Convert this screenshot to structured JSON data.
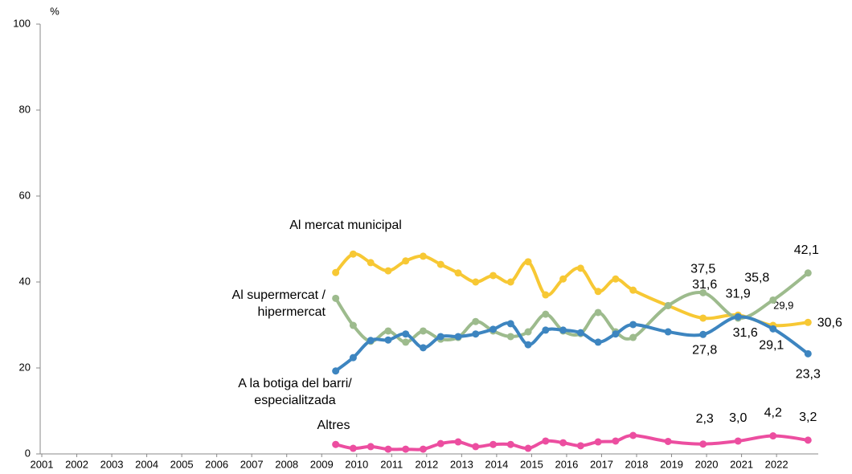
{
  "chart_data": {
    "type": "line",
    "y_unit_label": "%",
    "xlim": [
      2001,
      2023.1
    ],
    "xticks": [
      2001,
      2002,
      2003,
      2004,
      2005,
      2006,
      2007,
      2008,
      2009,
      2010,
      2011,
      2012,
      2013,
      2014,
      2015,
      2016,
      2017,
      2018,
      2019,
      2020,
      2021,
      2022
    ],
    "ylim": [
      0,
      100
    ],
    "yticks": [
      0,
      20,
      40,
      60,
      80,
      100
    ],
    "grid": false,
    "x": [
      2009.4,
      2009.9,
      2010.4,
      2010.9,
      2011.4,
      2011.9,
      2012.4,
      2012.9,
      2013.4,
      2013.9,
      2014.4,
      2014.9,
      2015.4,
      2015.9,
      2016.4,
      2016.9,
      2017.4,
      2017.9,
      2018.9,
      2019.9,
      2020.9,
      2021.9,
      2022.9
    ],
    "series": [
      {
        "name": [
          "Al mercat municipal"
        ],
        "color": "#f7c834",
        "values": [
          42.2,
          46.5,
          44.5,
          42.6,
          44.9,
          46.0,
          44.1,
          42.1,
          40.0,
          41.5,
          40.0,
          44.7,
          37.0,
          40.7,
          43.2,
          37.8,
          40.7,
          38.1,
          34.5,
          31.6,
          32.3,
          29.9,
          30.6
        ],
        "value_labels": [
          null,
          null,
          null,
          null,
          null,
          null,
          null,
          null,
          null,
          null,
          null,
          null,
          null,
          null,
          null,
          null,
          null,
          null,
          null,
          "31,6",
          null,
          "29,9",
          "30,6"
        ]
      },
      {
        "name": [
          "Al supermercat /",
          "hipermercat"
        ],
        "color": "#9dbb8d",
        "values": [
          36.2,
          29.9,
          26.2,
          28.6,
          26.0,
          28.6,
          26.7,
          27.1,
          30.8,
          28.6,
          27.3,
          28.4,
          32.5,
          28.6,
          28.0,
          32.9,
          28.4,
          27.1,
          34.5,
          37.5,
          31.6,
          35.8,
          42.1
        ],
        "value_labels": [
          null,
          null,
          null,
          null,
          null,
          null,
          null,
          null,
          null,
          null,
          null,
          null,
          null,
          null,
          null,
          null,
          null,
          null,
          null,
          "37,5",
          "31,6",
          "35,8",
          "42,1"
        ]
      },
      {
        "name": [
          "A la botiga del barri/",
          "especialitzada"
        ],
        "color": "#3d85c0",
        "values": [
          19.3,
          22.4,
          26.4,
          26.5,
          27.9,
          24.7,
          27.3,
          27.3,
          27.9,
          29.0,
          30.3,
          25.4,
          28.8,
          28.8,
          28.2,
          26.0,
          27.9,
          30.1,
          28.4,
          27.8,
          31.9,
          29.1,
          23.3
        ],
        "value_labels": [
          null,
          null,
          null,
          null,
          null,
          null,
          null,
          null,
          null,
          null,
          null,
          null,
          null,
          null,
          null,
          null,
          null,
          null,
          null,
          "27,8",
          "31,9",
          "29,1",
          "23,3"
        ]
      },
      {
        "name": [
          "Altres"
        ],
        "color": "#ec4ea0",
        "values": [
          2.2,
          1.3,
          1.7,
          1.1,
          1.1,
          1.1,
          2.4,
          2.8,
          1.7,
          2.2,
          2.2,
          1.3,
          3.0,
          2.6,
          1.9,
          2.8,
          3.0,
          4.3,
          2.9,
          2.3,
          3.0,
          4.2,
          3.2
        ],
        "value_labels": [
          null,
          null,
          null,
          null,
          null,
          null,
          null,
          null,
          null,
          null,
          null,
          null,
          null,
          null,
          null,
          null,
          null,
          null,
          null,
          "2,3",
          "3,0",
          "4,2",
          "3,2"
        ]
      }
    ]
  }
}
